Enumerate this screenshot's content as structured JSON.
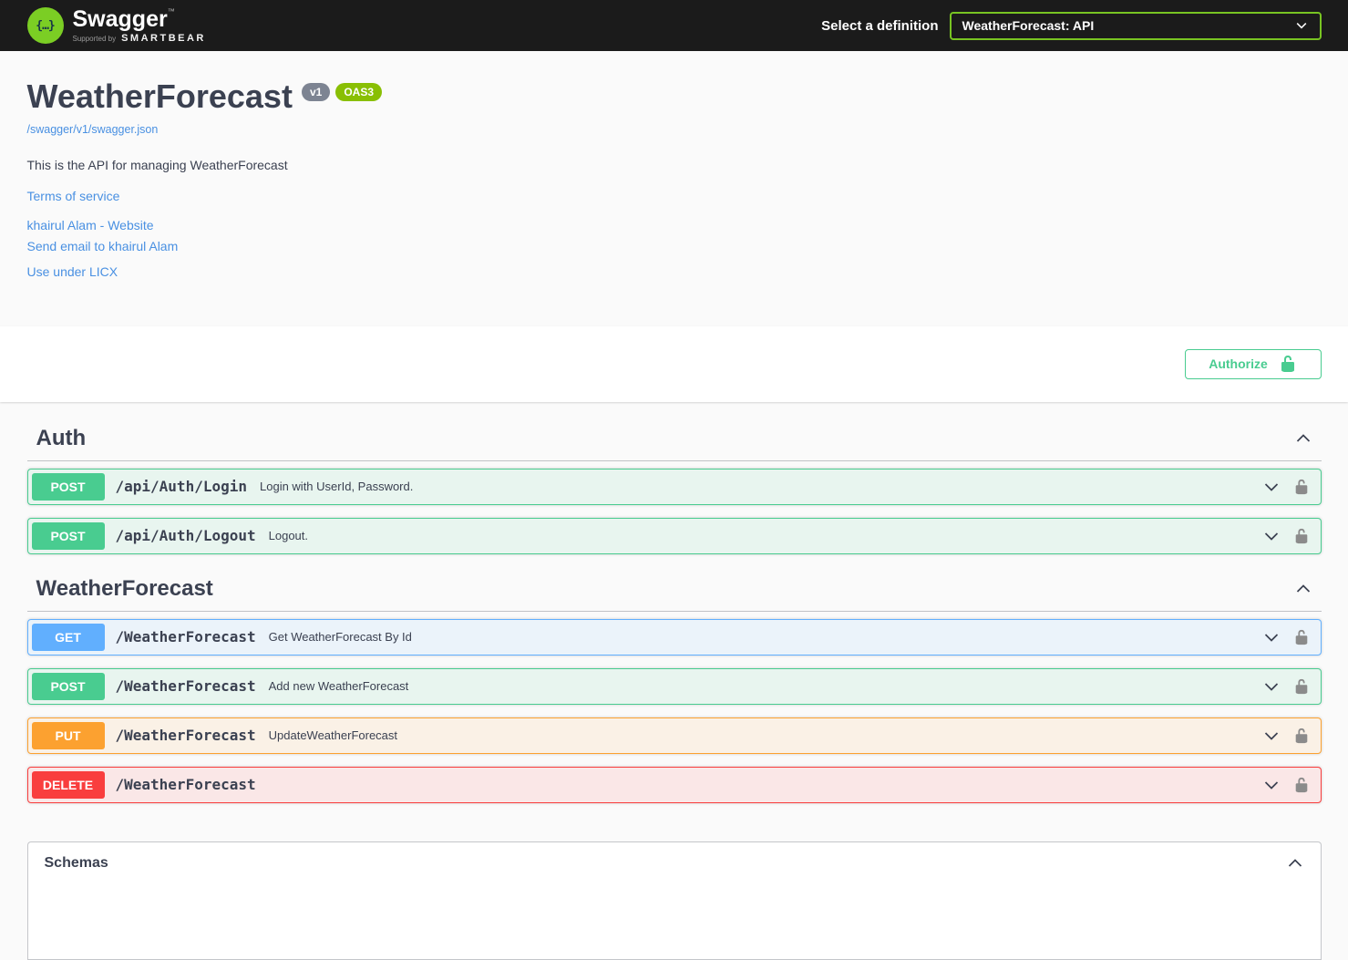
{
  "topbar": {
    "brand": "Swagger",
    "brand_tm": "™",
    "logo_glyph": "{…}",
    "supported_by_prefix": "Supported by",
    "supported_by": "SMARTBEAR",
    "select_label": "Select a definition",
    "selected_definition": "WeatherForecast: API"
  },
  "info": {
    "title": "WeatherForecast",
    "version_badge": "v1",
    "oas_badge": "OAS3",
    "spec_url": "/swagger/v1/swagger.json",
    "description": "This is the API for managing WeatherForecast",
    "links": [
      "Terms of service",
      "khairul Alam - Website",
      "Send email to khairul Alam",
      "Use under LICX"
    ]
  },
  "auth": {
    "authorize_label": "Authorize"
  },
  "sections": [
    {
      "title": "Auth",
      "operations": [
        {
          "method": "POST",
          "path": "/api/Auth/Login",
          "summary": "Login with UserId, Password."
        },
        {
          "method": "POST",
          "path": "/api/Auth/Logout",
          "summary": "Logout."
        }
      ]
    },
    {
      "title": "WeatherForecast",
      "operations": [
        {
          "method": "GET",
          "path": "/WeatherForecast",
          "summary": "Get WeatherForecast By Id"
        },
        {
          "method": "POST",
          "path": "/WeatherForecast",
          "summary": "Add new WeatherForecast"
        },
        {
          "method": "PUT",
          "path": "/WeatherForecast",
          "summary": "UpdateWeatherForecast"
        },
        {
          "method": "DELETE",
          "path": "/WeatherForecast",
          "summary": ""
        }
      ]
    }
  ],
  "schemas": {
    "title": "Schemas"
  },
  "colors": {
    "topbar_bg": "#1b1b1b",
    "logo_green": "#7bce24",
    "select_border": "#78c422",
    "link_blue": "#4990e2",
    "text": "#3b4151",
    "version_badge_bg": "#7d8492",
    "oas3_badge_bg": "#89bf04",
    "authorize_green": "#49cc90",
    "methods": {
      "GET": {
        "color": "#61affe",
        "bg": "#ebf3fa"
      },
      "POST": {
        "color": "#49cc90",
        "bg": "#e8f5ef"
      },
      "PUT": {
        "color": "#fca130",
        "bg": "#faf1e6"
      },
      "DELETE": {
        "color": "#f93e3e",
        "bg": "#fae7e7"
      }
    }
  }
}
